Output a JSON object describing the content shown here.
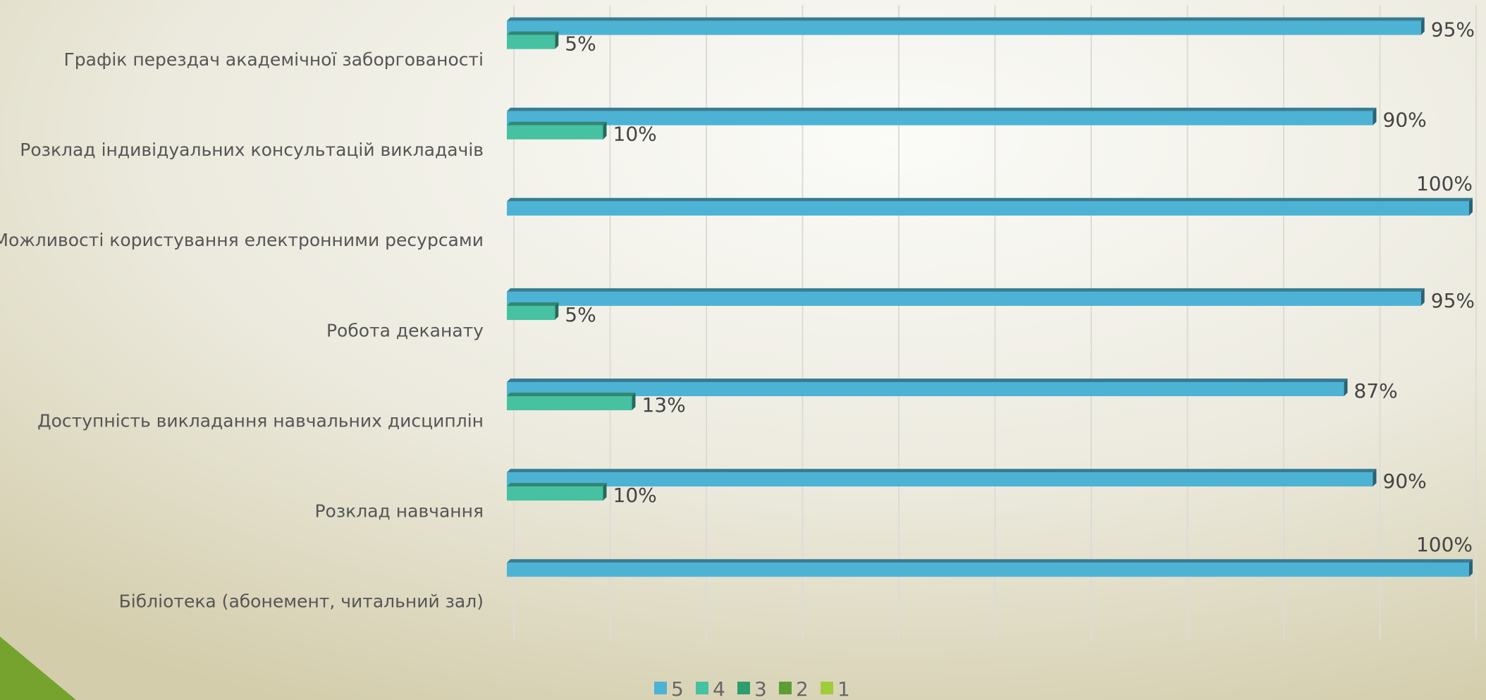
{
  "chart_data": {
    "type": "bar",
    "orientation": "horizontal",
    "categories": [
      "Графік перездач академічної заборгованості",
      "Розклад індивідуальних консультацій викладачів",
      "Можливості користування електронними ресурсами",
      "Робота деканату",
      "Доступність викладання навчальних дисциплін",
      "Розклад навчання",
      "Бібліотека (абонемент, читальний зал)"
    ],
    "series": [
      {
        "name": "5",
        "color": "#4db3d4",
        "values": [
          95,
          90,
          100,
          95,
          87,
          90,
          100
        ],
        "value_labels": [
          "95%",
          "90%",
          "100%",
          "95%",
          "87%",
          "90%",
          "100%"
        ]
      },
      {
        "name": "4",
        "color": "#46c1a2",
        "values": [
          5,
          10,
          null,
          5,
          13,
          10,
          null
        ],
        "value_labels": [
          "5%",
          "10%",
          null,
          "5%",
          "13%",
          "10%",
          null
        ]
      },
      {
        "name": "3",
        "color": "#2e9e6c",
        "values": [
          null,
          null,
          null,
          null,
          null,
          null,
          null
        ]
      },
      {
        "name": "2",
        "color": "#5d9e34",
        "values": [
          null,
          null,
          null,
          null,
          null,
          null,
          null
        ]
      },
      {
        "name": "1",
        "color": "#9fcd3a",
        "values": [
          null,
          null,
          null,
          null,
          null,
          null,
          null
        ]
      }
    ],
    "xlim": [
      0,
      100
    ],
    "xticks": [
      0,
      10,
      20,
      30,
      40,
      50,
      60,
      70,
      80,
      90,
      100
    ],
    "grid": true,
    "legend": "bottom"
  }
}
